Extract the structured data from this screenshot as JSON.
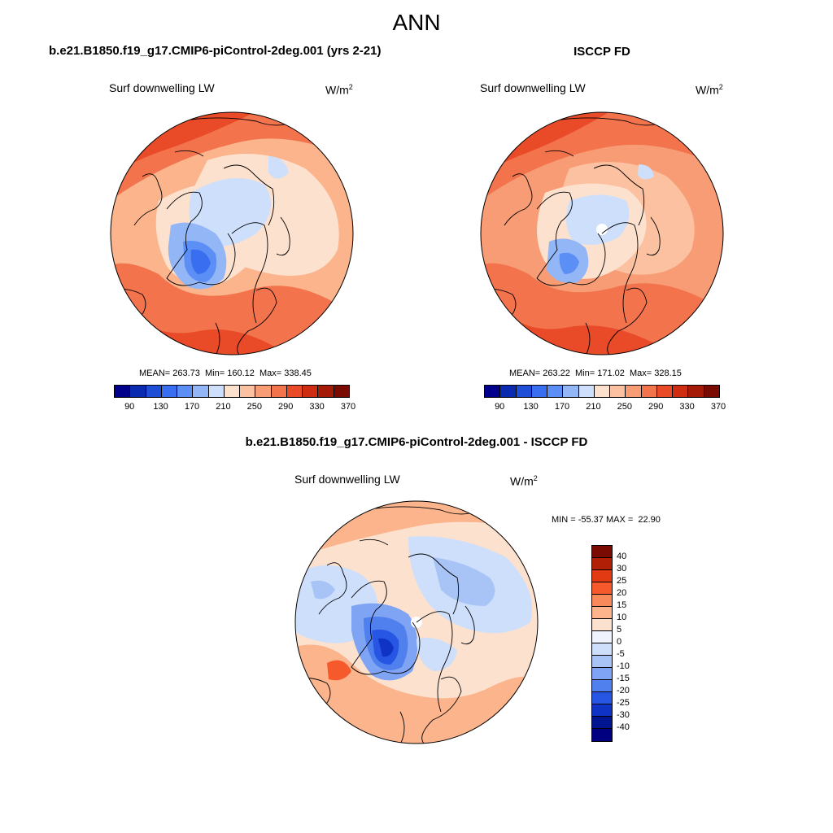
{
  "main_title": "ANN",
  "model_title": "b.e21.B1850.f19_g17.CMIP6-piControl-2deg.001 (yrs 2-21)",
  "obs_title": "ISCCP FD",
  "diff_title": "b.e21.B1850.f19_g17.CMIP6-piControl-2deg.001 - ISCCP FD",
  "panels": {
    "model": {
      "variable": "Surf downwelling LW",
      "units_base": "W/m",
      "units_exp": "2",
      "stats": "MEAN= 263.73  Min= 160.12  Max= 338.45"
    },
    "obs": {
      "variable": "Surf downwelling LW",
      "units_base": "W/m",
      "units_exp": "2",
      "stats": "MEAN= 263.22  Min= 171.02  Max= 328.15"
    },
    "diff": {
      "variable": "Surf downwelling LW",
      "units_base": "W/m",
      "units_exp": "2",
      "stats": "MIN = -55.37 MAX =  22.90"
    }
  },
  "colorbar_top": {
    "colors": [
      "#00008b",
      "#0a2bb0",
      "#1f4fd6",
      "#3a6ef0",
      "#5b8ff5",
      "#93b6f6",
      "#cddffa",
      "#fde1cf",
      "#fbc1a1",
      "#f79c74",
      "#f2734c",
      "#e94a28",
      "#cf2d12",
      "#a41a07",
      "#7a0b02"
    ],
    "labels": [
      "90",
      "130",
      "170",
      "210",
      "250",
      "290",
      "330",
      "370"
    ]
  },
  "colorbar_diff": {
    "colors": [
      "#7a0b02",
      "#b01f06",
      "#e23a12",
      "#f6592c",
      "#f7895a",
      "#fbb48c",
      "#fde1cf",
      "#eef3fd",
      "#cddffa",
      "#a8c4f7",
      "#7ea4f3",
      "#507fee",
      "#2756e4",
      "#0f33c4",
      "#00158f",
      "#000080"
    ],
    "labels": [
      "40",
      "30",
      "25",
      "20",
      "15",
      "10",
      "5",
      "0",
      "-5",
      "-10",
      "-15",
      "-20",
      "-25",
      "-30",
      "-40"
    ]
  }
}
